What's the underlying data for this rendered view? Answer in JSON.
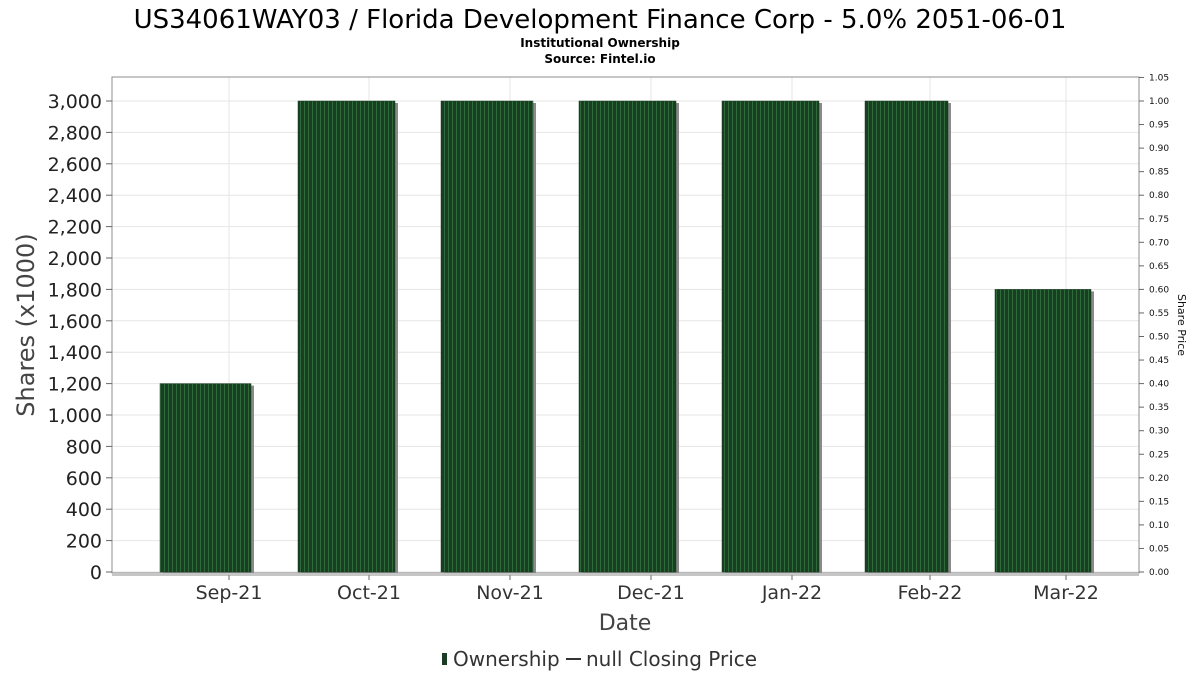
{
  "chart_data": {
    "type": "bar",
    "title": "US34061WAY03 / Florida Development Finance Corp - 5.0% 2051-06-01",
    "subtitle_1": "Institutional Ownership",
    "subtitle_2": "Source: Fintel.io",
    "xlabel": "Date",
    "ylabel": "Shares (x1000)",
    "y2label": "Share Price",
    "categories": [
      "Sep-21",
      "Oct-21",
      "Nov-21",
      "Dec-21",
      "Jan-22",
      "Feb-22",
      "Mar-22"
    ],
    "series": [
      {
        "name": "Ownership",
        "values": [
          1200,
          3000,
          3000,
          3000,
          3000,
          3000,
          1800
        ]
      }
    ],
    "ylim": [
      0,
      3000
    ],
    "yticks": [
      "0",
      "200",
      "400",
      "600",
      "800",
      "1,000",
      "1,200",
      "1,400",
      "1,600",
      "1,800",
      "2,000",
      "2,200",
      "2,400",
      "2,600",
      "2,800",
      "3,000"
    ],
    "y2lim": [
      0,
      1.05
    ],
    "y2ticks": [
      "0.00",
      "0.05",
      "0.10",
      "0.15",
      "0.20",
      "0.25",
      "0.30",
      "0.35",
      "0.40",
      "0.45",
      "0.50",
      "0.55",
      "0.60",
      "0.65",
      "0.70",
      "0.75",
      "0.80",
      "0.85",
      "0.90",
      "0.95",
      "1.00",
      "1.05"
    ],
    "grid": true,
    "legend": {
      "placement": "bottom",
      "items": [
        {
          "label": "Ownership",
          "marker": "bar"
        },
        {
          "label": "null Closing Price",
          "marker": "line"
        }
      ]
    },
    "colors": {
      "bar": "#1a3d23",
      "bar_stripe": "#2e6b3a",
      "bar_shadow": "#8a8a8a",
      "grid": "#e6e6e6",
      "plot_border": "#8c8c8c"
    }
  }
}
